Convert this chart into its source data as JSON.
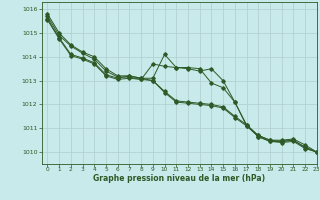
{
  "background_color": "#c8eaea",
  "grid_color": "#b0cccc",
  "line_color": "#2d5a27",
  "text_color": "#2d5a27",
  "xlabel": "Graphe pression niveau de la mer (hPa)",
  "xlim": [
    -0.5,
    23
  ],
  "ylim": [
    1009.5,
    1016.3
  ],
  "yticks": [
    1010,
    1011,
    1012,
    1013,
    1014,
    1015,
    1016
  ],
  "xticks": [
    0,
    1,
    2,
    3,
    4,
    5,
    6,
    7,
    8,
    9,
    10,
    11,
    12,
    13,
    14,
    15,
    16,
    17,
    18,
    19,
    20,
    21,
    22,
    23
  ],
  "series": [
    [
      1015.8,
      1015.0,
      1014.5,
      1014.2,
      1014.0,
      1013.5,
      1013.2,
      1013.2,
      1013.1,
      1013.1,
      1014.1,
      1013.55,
      1013.5,
      1013.4,
      1013.5,
      1013.0,
      1012.1,
      1011.15,
      1010.65,
      1010.45,
      1010.45,
      1010.5,
      1010.2,
      1010.0
    ],
    [
      1015.7,
      1014.9,
      1014.45,
      1014.15,
      1013.9,
      1013.4,
      1013.15,
      1013.15,
      1013.05,
      1013.7,
      1013.6,
      1013.55,
      1013.55,
      1013.5,
      1012.9,
      1012.7,
      1012.1,
      1011.1,
      1010.7,
      1010.5,
      1010.5,
      1010.55,
      1010.3,
      1010.0
    ],
    [
      1015.6,
      1014.8,
      1014.1,
      1013.95,
      1013.75,
      1013.25,
      1013.1,
      1013.2,
      1013.1,
      1013.0,
      1012.55,
      1012.15,
      1012.1,
      1012.05,
      1012.0,
      1011.9,
      1011.5,
      1011.15,
      1010.7,
      1010.5,
      1010.45,
      1010.5,
      1010.2,
      1010.0
    ],
    [
      1015.55,
      1014.75,
      1014.05,
      1013.9,
      1013.7,
      1013.2,
      1013.05,
      1013.1,
      1013.05,
      1013.0,
      1012.5,
      1012.1,
      1012.05,
      1012.0,
      1011.95,
      1011.85,
      1011.45,
      1011.1,
      1010.65,
      1010.45,
      1010.4,
      1010.45,
      1010.15,
      1010.0
    ]
  ]
}
